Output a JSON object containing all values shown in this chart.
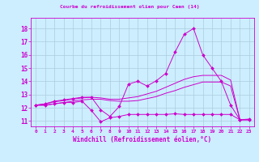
{
  "background_color": "#cceeff",
  "grid_color": "#aaccdd",
  "line_color": "#cc00cc",
  "xlim": [
    -0.5,
    23.5
  ],
  "ylim": [
    10.6,
    18.8
  ],
  "xticks": [
    0,
    1,
    2,
    3,
    4,
    5,
    6,
    7,
    8,
    9,
    10,
    11,
    12,
    13,
    14,
    15,
    16,
    17,
    18,
    19,
    20,
    21,
    22,
    23
  ],
  "yticks": [
    11,
    12,
    13,
    14,
    15,
    16,
    17,
    18
  ],
  "xlabel": "Windchill (Refroidissement éolien,°C)",
  "title": "Courbe du refroidissement olien pour Caen (14)",
  "series": [
    {
      "x": [
        0,
        1,
        2,
        3,
        4,
        5,
        6,
        7,
        8,
        9,
        10,
        11,
        12,
        13,
        14,
        15,
        16,
        17,
        18,
        19,
        20,
        21,
        22,
        23
      ],
      "y": [
        12.2,
        12.3,
        12.5,
        12.6,
        12.7,
        12.8,
        12.8,
        11.85,
        11.35,
        12.1,
        13.8,
        14.0,
        13.65,
        14.05,
        14.6,
        16.2,
        17.55,
        18.0,
        16.0,
        15.0,
        14.0,
        12.2,
        11.1,
        11.15
      ],
      "marker": true,
      "markersize": 2.0
    },
    {
      "x": [
        0,
        1,
        2,
        3,
        4,
        5,
        6,
        7,
        8,
        9,
        10,
        11,
        12,
        13,
        14,
        15,
        16,
        17,
        18,
        19,
        20,
        21,
        22,
        23
      ],
      "y": [
        12.2,
        12.3,
        12.45,
        12.55,
        12.65,
        12.75,
        12.8,
        12.75,
        12.65,
        12.65,
        12.75,
        12.85,
        13.05,
        13.25,
        13.55,
        13.85,
        14.15,
        14.35,
        14.45,
        14.45,
        14.45,
        14.1,
        11.1,
        11.1
      ],
      "marker": false,
      "markersize": 0
    },
    {
      "x": [
        0,
        1,
        2,
        3,
        4,
        5,
        6,
        7,
        8,
        9,
        10,
        11,
        12,
        13,
        14,
        15,
        16,
        17,
        18,
        19,
        20,
        21,
        22,
        23
      ],
      "y": [
        12.2,
        12.2,
        12.3,
        12.4,
        12.5,
        12.6,
        12.65,
        12.65,
        12.55,
        12.5,
        12.5,
        12.55,
        12.7,
        12.85,
        13.1,
        13.3,
        13.55,
        13.75,
        13.95,
        13.95,
        13.95,
        13.65,
        11.1,
        11.1
      ],
      "marker": false,
      "markersize": 0
    },
    {
      "x": [
        0,
        1,
        2,
        3,
        4,
        5,
        6,
        7,
        8,
        9,
        10,
        11,
        12,
        13,
        14,
        15,
        16,
        17,
        18,
        19,
        20,
        21,
        22,
        23
      ],
      "y": [
        12.2,
        12.2,
        12.3,
        12.4,
        12.4,
        12.5,
        11.8,
        10.95,
        11.25,
        11.35,
        11.5,
        11.5,
        11.5,
        11.5,
        11.5,
        11.55,
        11.5,
        11.5,
        11.5,
        11.5,
        11.5,
        11.5,
        11.1,
        11.1
      ],
      "marker": true,
      "markersize": 2.0
    }
  ]
}
